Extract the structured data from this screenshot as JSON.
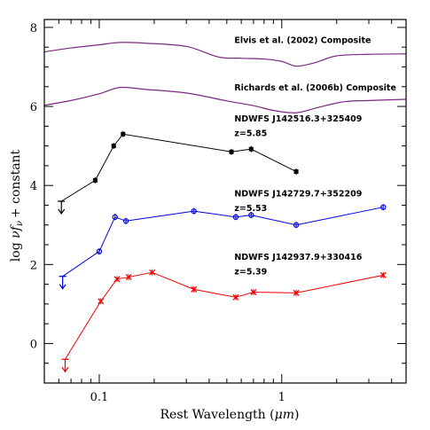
{
  "chart_data": {
    "type": "line",
    "xlabel_prefix": "Rest Wavelength (",
    "xlabel_unit": "μm",
    "xlabel_suffix": ")",
    "ylabel_prefix": "log ",
    "ylabel_nu": "ν",
    "ylabel_f": "f",
    "ylabel_sub": "ν",
    "ylabel_suffix": "+ constant",
    "x_scale": "log",
    "xlim": [
      0.05,
      4.8
    ],
    "ylim": [
      -1,
      8.2
    ],
    "x_ticks": [
      {
        "value": 0.1,
        "label": "0.1"
      },
      {
        "value": 1,
        "label": "1"
      }
    ],
    "y_ticks": [
      {
        "value": 0,
        "label": "0"
      },
      {
        "value": 2,
        "label": "2"
      },
      {
        "value": 4,
        "label": "4"
      },
      {
        "value": 6,
        "label": "6"
      },
      {
        "value": 8,
        "label": "8"
      }
    ],
    "composites": [
      {
        "label": "Elvis et al. (2002) Composite",
        "color": "#7a2a80",
        "label_at": [
          0.55,
          7.6
        ],
        "points": [
          [
            0.05,
            7.38
          ],
          [
            0.07,
            7.48
          ],
          [
            0.1,
            7.56
          ],
          [
            0.13,
            7.62
          ],
          [
            0.18,
            7.6
          ],
          [
            0.3,
            7.52
          ],
          [
            0.45,
            7.25
          ],
          [
            0.6,
            7.22
          ],
          [
            0.8,
            7.2
          ],
          [
            1.0,
            7.14
          ],
          [
            1.2,
            7.02
          ],
          [
            1.5,
            7.1
          ],
          [
            2.0,
            7.28
          ],
          [
            3.0,
            7.32
          ],
          [
            4.8,
            7.33
          ]
        ]
      },
      {
        "label": "Richards et al. (2006b) Composite",
        "color": "#7a2a80",
        "label_at": [
          0.55,
          6.4
        ],
        "points": [
          [
            0.05,
            6.03
          ],
          [
            0.07,
            6.15
          ],
          [
            0.1,
            6.32
          ],
          [
            0.13,
            6.48
          ],
          [
            0.18,
            6.43
          ],
          [
            0.3,
            6.34
          ],
          [
            0.5,
            6.14
          ],
          [
            0.7,
            6.02
          ],
          [
            0.9,
            5.9
          ],
          [
            1.2,
            5.84
          ],
          [
            1.6,
            5.98
          ],
          [
            2.2,
            6.12
          ],
          [
            3.0,
            6.15
          ],
          [
            4.8,
            6.18
          ]
        ]
      }
    ],
    "series": [
      {
        "name": "NDWFS J142516.3+325409",
        "z_label": "z=5.85",
        "color": "#000000",
        "marker": "square",
        "label_at": [
          0.55,
          5.62
        ],
        "z_at": [
          0.55,
          5.25
        ],
        "upper_limit": {
          "x": 0.062,
          "y": 3.6
        },
        "points": [
          [
            0.062,
            3.6
          ],
          [
            0.095,
            4.13
          ],
          [
            0.12,
            5.0
          ],
          [
            0.135,
            5.3
          ],
          [
            0.53,
            4.85
          ],
          [
            0.68,
            4.92
          ],
          [
            1.2,
            4.35
          ]
        ]
      },
      {
        "name": "NDWFS J142729.7+352209",
        "z_label": "z=5.53",
        "color": "#0000dd",
        "marker": "circle",
        "label_at": [
          0.55,
          3.72
        ],
        "z_at": [
          0.55,
          3.35
        ],
        "upper_limit": {
          "x": 0.063,
          "y": 1.7
        },
        "points": [
          [
            0.063,
            1.7
          ],
          [
            0.1,
            2.33
          ],
          [
            0.122,
            3.2
          ],
          [
            0.14,
            3.1
          ],
          [
            0.33,
            3.35
          ],
          [
            0.56,
            3.2
          ],
          [
            0.68,
            3.25
          ],
          [
            1.2,
            3.0
          ],
          [
            3.6,
            3.45
          ]
        ]
      },
      {
        "name": "NDWFS J142937.9+330416",
        "z_label": "z=5.39",
        "color": "#ee0000",
        "marker": "cross",
        "label_at": [
          0.55,
          2.12
        ],
        "z_at": [
          0.55,
          1.75
        ],
        "upper_limit": {
          "x": 0.065,
          "y": -0.4
        },
        "points": [
          [
            0.065,
            -0.4
          ],
          [
            0.102,
            1.07
          ],
          [
            0.125,
            1.63
          ],
          [
            0.145,
            1.68
          ],
          [
            0.195,
            1.8
          ],
          [
            0.33,
            1.37
          ],
          [
            0.56,
            1.17
          ],
          [
            0.7,
            1.3
          ],
          [
            1.2,
            1.28
          ],
          [
            3.6,
            1.73
          ]
        ]
      }
    ]
  }
}
